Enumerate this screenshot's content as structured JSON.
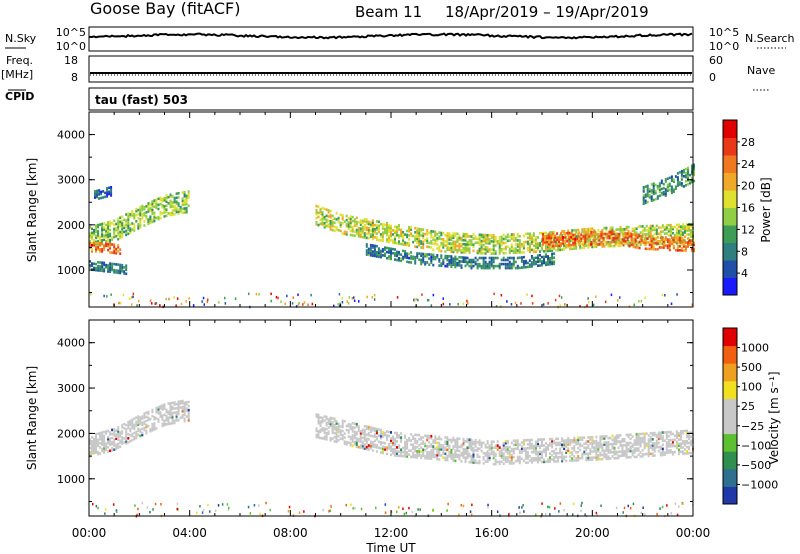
{
  "header": {
    "title": "Goose Bay (fitACF)",
    "beam": "Beam 11",
    "dates": "18/Apr/2019 – 19/Apr/2019"
  },
  "top_panels": {
    "nsky_label": "N.Sky",
    "nsky_ticks": [
      "10^5",
      "10^0"
    ],
    "nsearch_label": "N.Search",
    "nsearch_ticks": [
      "10^5",
      "10^0"
    ],
    "freq_label": "Freq.",
    "freq_unit": "[MHz]",
    "freq_ticks": [
      "18",
      "8"
    ],
    "nave_label": "Nave",
    "nave_ticks": [
      "60",
      "0"
    ],
    "cpid_label": "CPID",
    "cpid_value": "tau (fast) 503"
  },
  "colors": {
    "power": [
      "#1a1aff",
      "#1f4fa8",
      "#2f7f7f",
      "#3d9c55",
      "#8fce45",
      "#e0e030",
      "#f0a828",
      "#f07820",
      "#e83818",
      "#e00000"
    ],
    "velocity": [
      "#1f3aa8",
      "#2f6f8f",
      "#2f8f4f",
      "#5cc030",
      "#c8c8c8",
      "#c8c8c8",
      "#f0e020",
      "#f0a020",
      "#f06010",
      "#e00000"
    ]
  },
  "chart_data": [
    {
      "type": "heatmap",
      "name": "power",
      "ylabel": "Slant Range [km]",
      "ylim": [
        180,
        4500
      ],
      "yticks": [
        "1000",
        "2000",
        "3000",
        "4000"
      ],
      "xlim": [
        0,
        24
      ],
      "colorbar": {
        "label": "Power [dB]",
        "range": [
          0,
          32
        ],
        "ticks": [
          "4",
          "8",
          "12",
          "16",
          "20",
          "24",
          "28"
        ]
      },
      "echo_bands": [
        {
          "t": [
            0.0,
            1.0,
            2.0,
            3.0,
            4.0
          ],
          "range_km": [
            1750,
            1900,
            2200,
            2450,
            2550
          ],
          "width_km": 450,
          "value_db": 14
        },
        {
          "t": [
            0.0,
            0.5,
            1.2
          ],
          "range_km": [
            1550,
            1550,
            1500
          ],
          "width_km": 220,
          "value_db": 24
        },
        {
          "t": [
            0.0,
            0.8,
            1.5
          ],
          "range_km": [
            1150,
            1100,
            1050
          ],
          "width_km": 220,
          "value_db": 8
        },
        {
          "t": [
            0.2,
            0.9
          ],
          "range_km": [
            2700,
            2800
          ],
          "width_km": 220,
          "value_db": 6
        },
        {
          "t": [
            9.0,
            10.0,
            12.0,
            14.0,
            16.0,
            18.0,
            20.0,
            22.0,
            24.0
          ],
          "range_km": [
            2250,
            2050,
            1850,
            1650,
            1600,
            1650,
            1750,
            1800,
            1850
          ],
          "width_km": 420,
          "value_db": 16
        },
        {
          "t": [
            11.0,
            13.0,
            15.0,
            17.0,
            18.5
          ],
          "range_km": [
            1500,
            1300,
            1200,
            1200,
            1300
          ],
          "width_km": 260,
          "value_db": 8
        },
        {
          "t": [
            18.0,
            20.0,
            21.0,
            22.0,
            24.0
          ],
          "range_km": [
            1700,
            1750,
            1750,
            1650,
            1600
          ],
          "width_km": 300,
          "value_db": 24
        },
        {
          "t": [
            22.0,
            23.0,
            24.0
          ],
          "range_km": [
            2700,
            2900,
            3200
          ],
          "width_km": 400,
          "value_db": 10
        }
      ]
    },
    {
      "type": "heatmap",
      "name": "velocity",
      "ylabel": "Slant Range [km]",
      "ylim": [
        180,
        4500
      ],
      "yticks": [
        "1000",
        "2000",
        "3000",
        "4000"
      ],
      "xlim": [
        0,
        24
      ],
      "xticks": [
        "00:00",
        "04:00",
        "08:00",
        "12:00",
        "16:00",
        "20:00",
        "00:00"
      ],
      "xlabel": "Time UT",
      "colorbar": {
        "label": "Velocity [m s⁻¹]",
        "ticks": [
          "1000",
          "500",
          "100",
          "25",
          "−25",
          "−100",
          "−500",
          "−1000"
        ]
      },
      "echo_bands": [
        {
          "t": [
            0.0,
            1.0,
            2.0,
            3.0,
            4.0
          ],
          "range_km": [
            1750,
            1900,
            2200,
            2450,
            2550
          ],
          "width_km": 450,
          "value_ms": 0
        },
        {
          "t": [
            9.0,
            12.0,
            16.0,
            20.0,
            24.0
          ],
          "range_km": [
            2200,
            1800,
            1600,
            1700,
            1850
          ],
          "width_km": 500,
          "value_ms": 0
        }
      ]
    }
  ]
}
